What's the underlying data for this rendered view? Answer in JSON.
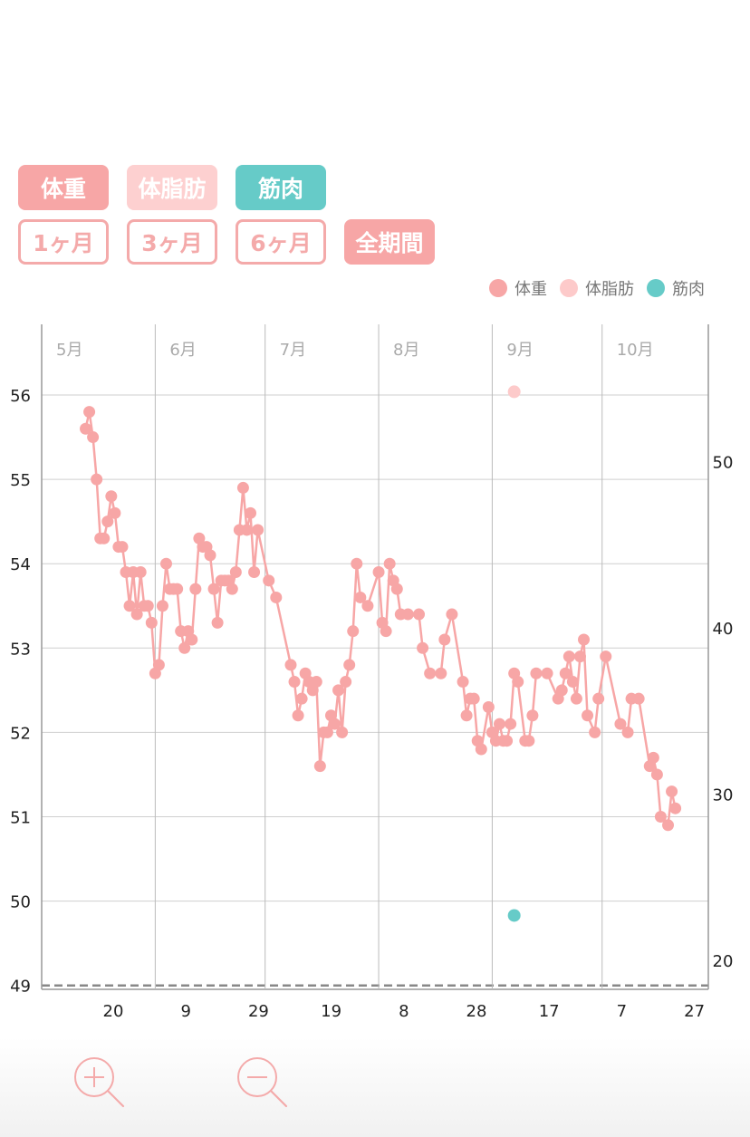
{
  "metric_buttons": [
    {
      "label": "体重",
      "color": "#f7a6a6"
    },
    {
      "label": "体脂肪",
      "color": "#fdd0d0"
    },
    {
      "label": "筋肉",
      "color": "#66cbc8"
    }
  ],
  "period_buttons": [
    {
      "label": "1ヶ月",
      "selected": false
    },
    {
      "label": "3ヶ月",
      "selected": false
    },
    {
      "label": "6ヶ月",
      "selected": false
    },
    {
      "label": "全期間",
      "selected": true
    }
  ],
  "legend": [
    {
      "label": "体重",
      "color": "#f7a6a6"
    },
    {
      "label": "体脂肪",
      "color": "#fdcaca"
    },
    {
      "label": "筋肉",
      "color": "#66cbc8"
    }
  ],
  "zoom": {
    "in_icon": "zoom-in-icon",
    "out_icon": "zoom-out-icon"
  },
  "chart_data": {
    "type": "line",
    "month_labels": [
      "5月",
      "6月",
      "7月",
      "8月",
      "9月",
      "10月"
    ],
    "x_tick_labels": [
      "20",
      "9",
      "29",
      "19",
      "8",
      "28",
      "17",
      "7",
      "27"
    ],
    "y_left_ticks": [
      "56",
      "55",
      "54",
      "53",
      "52",
      "51",
      "50",
      "49"
    ],
    "y_right_ticks": [
      "50",
      "40",
      "30",
      "20"
    ],
    "y_left_range": [
      49,
      56.8
    ],
    "y_right_range": [
      18.5,
      58.5
    ],
    "date_range": [
      "2020-05-01",
      "2020-10-30"
    ],
    "grid": true,
    "legend_position": "top-right",
    "series": [
      {
        "name": "体重",
        "color": "#f7a6a6",
        "axis": "left",
        "points": [
          [
            "2020-05-13",
            55.6
          ],
          [
            "2020-05-14",
            55.8
          ],
          [
            "2020-05-15",
            55.5
          ],
          [
            "2020-05-16",
            55.0
          ],
          [
            "2020-05-17",
            54.3
          ],
          [
            "2020-05-18",
            54.3
          ],
          [
            "2020-05-19",
            54.5
          ],
          [
            "2020-05-20",
            54.8
          ],
          [
            "2020-05-21",
            54.6
          ],
          [
            "2020-05-22",
            54.2
          ],
          [
            "2020-05-23",
            54.2
          ],
          [
            "2020-05-24",
            53.9
          ],
          [
            "2020-05-25",
            53.5
          ],
          [
            "2020-05-26",
            53.9
          ],
          [
            "2020-05-27",
            53.4
          ],
          [
            "2020-05-28",
            53.9
          ],
          [
            "2020-05-29",
            53.5
          ],
          [
            "2020-05-30",
            53.5
          ],
          [
            "2020-05-31",
            53.3
          ],
          [
            "2020-06-01",
            52.7
          ],
          [
            "2020-06-02",
            52.8
          ],
          [
            "2020-06-03",
            53.5
          ],
          [
            "2020-06-04",
            54.0
          ],
          [
            "2020-06-05",
            53.7
          ],
          [
            "2020-06-06",
            53.7
          ],
          [
            "2020-06-07",
            53.7
          ],
          [
            "2020-06-08",
            53.2
          ],
          [
            "2020-06-09",
            53.0
          ],
          [
            "2020-06-10",
            53.2
          ],
          [
            "2020-06-11",
            53.1
          ],
          [
            "2020-06-12",
            53.7
          ],
          [
            "2020-06-13",
            54.3
          ],
          [
            "2020-06-14",
            54.2
          ],
          [
            "2020-06-15",
            54.2
          ],
          [
            "2020-06-16",
            54.1
          ],
          [
            "2020-06-17",
            53.7
          ],
          [
            "2020-06-18",
            53.3
          ],
          [
            "2020-06-19",
            53.8
          ],
          [
            "2020-06-20",
            53.8
          ],
          [
            "2020-06-21",
            53.8
          ],
          [
            "2020-06-22",
            53.7
          ],
          [
            "2020-06-23",
            53.9
          ],
          [
            "2020-06-24",
            54.4
          ],
          [
            "2020-06-25",
            54.9
          ],
          [
            "2020-06-26",
            54.4
          ],
          [
            "2020-06-27",
            54.6
          ],
          [
            "2020-06-28",
            53.9
          ],
          [
            "2020-06-29",
            54.4
          ],
          [
            "2020-07-02",
            53.8
          ],
          [
            "2020-07-04",
            53.6
          ],
          [
            "2020-07-08",
            52.8
          ],
          [
            "2020-07-09",
            52.6
          ],
          [
            "2020-07-10",
            52.2
          ],
          [
            "2020-07-11",
            52.4
          ],
          [
            "2020-07-12",
            52.7
          ],
          [
            "2020-07-13",
            52.6
          ],
          [
            "2020-07-14",
            52.5
          ],
          [
            "2020-07-15",
            52.6
          ],
          [
            "2020-07-16",
            51.6
          ],
          [
            "2020-07-17",
            52.0
          ],
          [
            "2020-07-18",
            52.0
          ],
          [
            "2020-07-19",
            52.2
          ],
          [
            "2020-07-20",
            52.1
          ],
          [
            "2020-07-21",
            52.5
          ],
          [
            "2020-07-22",
            52.0
          ],
          [
            "2020-07-23",
            52.6
          ],
          [
            "2020-07-24",
            52.8
          ],
          [
            "2020-07-25",
            53.2
          ],
          [
            "2020-07-26",
            54.0
          ],
          [
            "2020-07-27",
            53.6
          ],
          [
            "2020-07-29",
            53.5
          ],
          [
            "2020-08-01",
            53.9
          ],
          [
            "2020-08-02",
            53.3
          ],
          [
            "2020-08-03",
            53.2
          ],
          [
            "2020-08-04",
            54.0
          ],
          [
            "2020-08-05",
            53.8
          ],
          [
            "2020-08-06",
            53.7
          ],
          [
            "2020-08-07",
            53.4
          ],
          [
            "2020-08-09",
            53.4
          ],
          [
            "2020-08-12",
            53.4
          ],
          [
            "2020-08-13",
            53.0
          ],
          [
            "2020-08-15",
            52.7
          ],
          [
            "2020-08-18",
            52.7
          ],
          [
            "2020-08-19",
            53.1
          ],
          [
            "2020-08-21",
            53.4
          ],
          [
            "2020-08-24",
            52.6
          ],
          [
            "2020-08-25",
            52.2
          ],
          [
            "2020-08-26",
            52.4
          ],
          [
            "2020-08-27",
            52.4
          ],
          [
            "2020-08-28",
            51.9
          ],
          [
            "2020-08-29",
            51.8
          ],
          [
            "2020-08-31",
            52.3
          ],
          [
            "2020-09-01",
            52.0
          ],
          [
            "2020-09-02",
            51.9
          ],
          [
            "2020-09-03",
            52.1
          ],
          [
            "2020-09-04",
            51.9
          ],
          [
            "2020-09-05",
            51.9
          ],
          [
            "2020-09-06",
            52.1
          ],
          [
            "2020-09-07",
            52.7
          ],
          [
            "2020-09-08",
            52.6
          ],
          [
            "2020-09-10",
            51.9
          ],
          [
            "2020-09-11",
            51.9
          ],
          [
            "2020-09-12",
            52.2
          ],
          [
            "2020-09-13",
            52.7
          ],
          [
            "2020-09-16",
            52.7
          ],
          [
            "2020-09-19",
            52.4
          ],
          [
            "2020-09-20",
            52.5
          ],
          [
            "2020-09-21",
            52.7
          ],
          [
            "2020-09-22",
            52.9
          ],
          [
            "2020-09-23",
            52.6
          ],
          [
            "2020-09-24",
            52.4
          ],
          [
            "2020-09-25",
            52.9
          ],
          [
            "2020-09-26",
            53.1
          ],
          [
            "2020-09-27",
            52.2
          ],
          [
            "2020-09-29",
            52.0
          ],
          [
            "2020-09-30",
            52.4
          ],
          [
            "2020-10-02",
            52.9
          ],
          [
            "2020-10-06",
            52.1
          ],
          [
            "2020-10-08",
            52.0
          ],
          [
            "2020-10-09",
            52.4
          ],
          [
            "2020-10-11",
            52.4
          ],
          [
            "2020-10-14",
            51.6
          ],
          [
            "2020-10-15",
            51.7
          ],
          [
            "2020-10-16",
            51.5
          ],
          [
            "2020-10-17",
            51.0
          ],
          [
            "2020-10-19",
            50.9
          ],
          [
            "2020-10-20",
            51.3
          ],
          [
            "2020-10-21",
            51.1
          ]
        ]
      },
      {
        "name": "体脂肪",
        "color": "#fdcaca",
        "axis": "right",
        "points": [
          [
            "2020-09-07",
            54.2
          ]
        ]
      },
      {
        "name": "筋肉",
        "color": "#66cbc8",
        "axis": "right",
        "points": [
          [
            "2020-09-07",
            22.7
          ]
        ]
      }
    ]
  }
}
